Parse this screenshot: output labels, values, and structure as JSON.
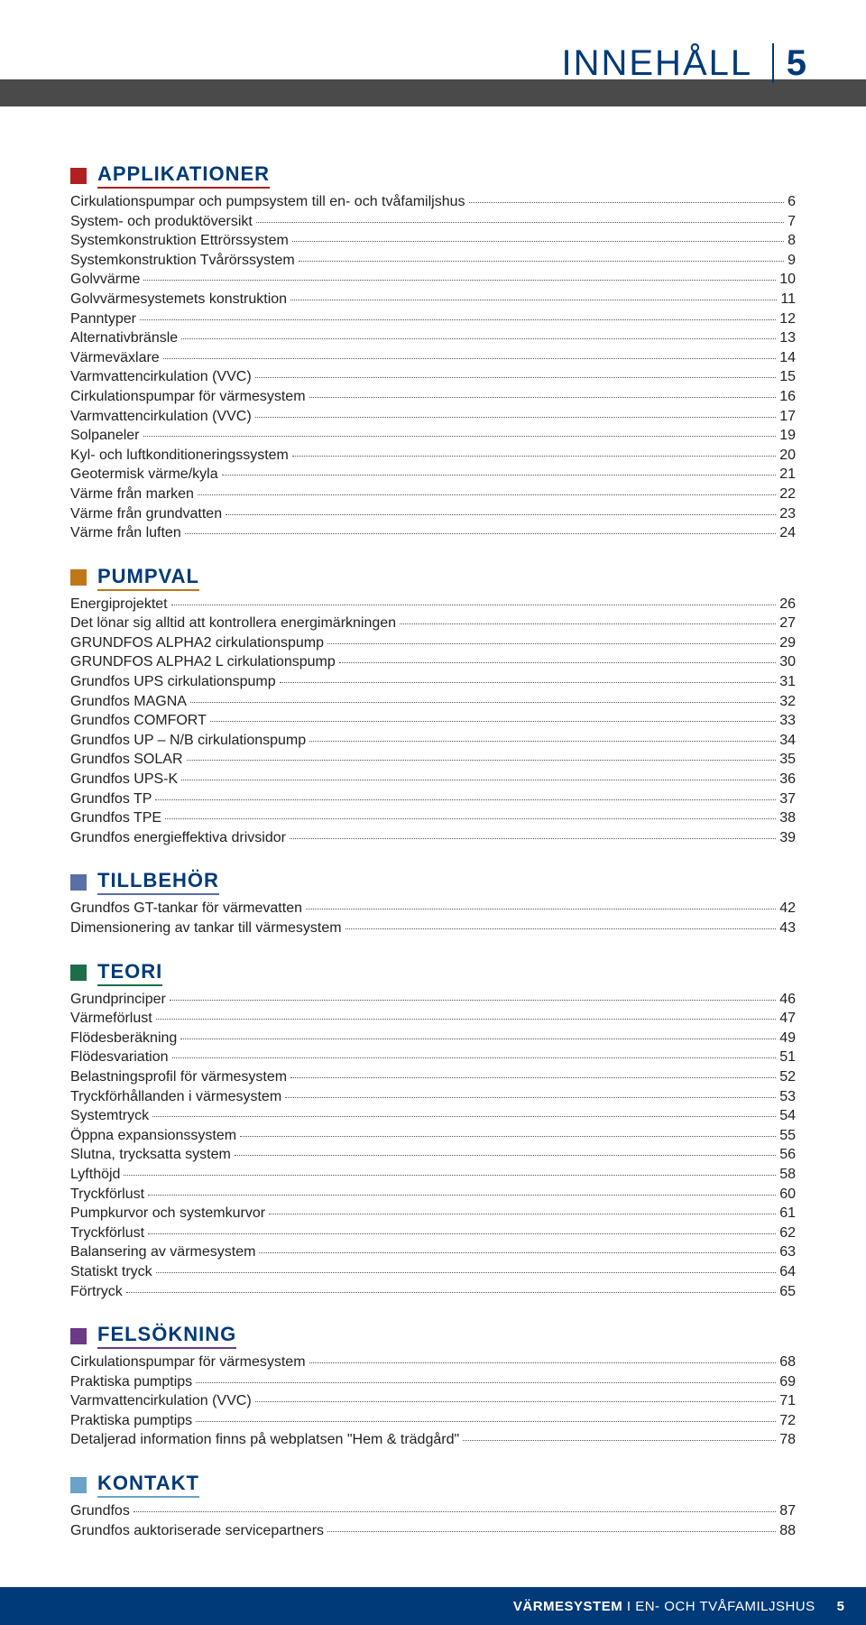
{
  "header": {
    "title": "INNEHÅLL",
    "page_number": "5",
    "title_color": "#003a78",
    "band_color": "#4a4a4a"
  },
  "typography": {
    "body_font": "Arial, Helvetica, sans-serif",
    "section_title_size_pt": 16,
    "entry_size_pt": 12
  },
  "colors": {
    "text": "#222222",
    "dots": "#555555",
    "footer_bg": "#003a78",
    "footer_text": "#ffffff"
  },
  "sections": [
    {
      "title": "APPLIKATIONER",
      "box_color": "#b02020",
      "underline_color": "#b02020",
      "entries": [
        {
          "label": "Cirkulationspumpar och pumpsystem till en- och tvåfamiljshus",
          "page": "6"
        },
        {
          "label": "System- och produktöversikt",
          "page": "7"
        },
        {
          "label": "Systemkonstruktion Ettrörssystem",
          "page": "8"
        },
        {
          "label": "Systemkonstruktion Tvårörssystem",
          "page": "9"
        },
        {
          "label": "Golvvärme",
          "page": "10"
        },
        {
          "label": "Golvvärmesystemets konstruktion",
          "page": "11"
        },
        {
          "label": "Panntyper",
          "page": "12"
        },
        {
          "label": "Alternativbränsle",
          "page": "13"
        },
        {
          "label": "Värmeväxlare",
          "page": "14"
        },
        {
          "label": "Varmvattencirkulation (VVC)",
          "page": "15"
        },
        {
          "label": "Cirkulationspumpar för värmesystem",
          "page": "16"
        },
        {
          "label": "Varmvattencirkulation (VVC)",
          "page": "17"
        },
        {
          "label": "Solpaneler",
          "page": "19"
        },
        {
          "label": "Kyl- och luftkonditioneringssystem",
          "page": "20"
        },
        {
          "label": "Geotermisk värme/kyla",
          "page": "21"
        },
        {
          "label": "Värme från marken",
          "page": "22"
        },
        {
          "label": "Värme från grundvatten",
          "page": "23"
        },
        {
          "label": "Värme från luften",
          "page": "24"
        }
      ]
    },
    {
      "title": "PUMPVAL",
      "box_color": "#c07718",
      "underline_color": "#c07718",
      "entries": [
        {
          "label": "Energiprojektet",
          "page": "26"
        },
        {
          "label": "Det lönar sig alltid att kontrollera energimärkningen",
          "page": "27"
        },
        {
          "label": "GRUNDFOS ALPHA2 cirkulationspump",
          "page": "29"
        },
        {
          "label": "GRUNDFOS ALPHA2 L cirkulationspump",
          "page": "30"
        },
        {
          "label": "Grundfos UPS cirkulationspump",
          "page": "31"
        },
        {
          "label": "Grundfos MAGNA",
          "page": "32"
        },
        {
          "label": "Grundfos COMFORT",
          "page": "33"
        },
        {
          "label": "Grundfos UP – N/B cirkulationspump",
          "page": "34"
        },
        {
          "label": "Grundfos SOLAR",
          "page": "35"
        },
        {
          "label": "Grundfos UPS-K",
          "page": "36"
        },
        {
          "label": "Grundfos TP",
          "page": "37"
        },
        {
          "label": "Grundfos TPE",
          "page": "38"
        },
        {
          "label": "Grundfos energieffektiva drivsidor",
          "page": "39"
        }
      ]
    },
    {
      "title": "TILLBEHÖR",
      "box_color": "#5a6ea8",
      "underline_color": "#5a6ea8",
      "entries": [
        {
          "label": "Grundfos GT-tankar för värmevatten",
          "page": "42"
        },
        {
          "label": "Dimensionering av tankar till värmesystem",
          "page": "43"
        }
      ]
    },
    {
      "title": "TEORI",
      "box_color": "#1a6e4a",
      "underline_color": "#1a6e4a",
      "entries": [
        {
          "label": "Grundprinciper",
          "page": "46"
        },
        {
          "label": "Värmeförlust",
          "page": "47"
        },
        {
          "label": "Flödesberäkning",
          "page": "49"
        },
        {
          "label": "Flödesvariation",
          "page": "51"
        },
        {
          "label": "Belastningsprofil för värmesystem",
          "page": "52"
        },
        {
          "label": "Tryckförhållanden i värmesystem",
          "page": "53"
        },
        {
          "label": "Systemtryck",
          "page": "54"
        },
        {
          "label": "Öppna expansionssystem",
          "page": "55"
        },
        {
          "label": "Slutna, trycksatta system",
          "page": "56"
        },
        {
          "label": "Lyfthöjd",
          "page": "58"
        },
        {
          "label": "Tryckförlust",
          "page": "60"
        },
        {
          "label": "Pumpkurvor och systemkurvor",
          "page": "61"
        },
        {
          "label": "Tryckförlust",
          "page": "62"
        },
        {
          "label": "Balansering av värmesystem",
          "page": "63"
        },
        {
          "label": "Statiskt tryck",
          "page": "64"
        },
        {
          "label": "Förtryck",
          "page": "65"
        }
      ]
    },
    {
      "title": "FELSÖKNING",
      "box_color": "#6a3a86",
      "underline_color": "#6a3a86",
      "entries": [
        {
          "label": "Cirkulationspumpar för värmesystem",
          "page": "68"
        },
        {
          "label": "Praktiska pumptips",
          "page": "69"
        },
        {
          "label": "Varmvattencirkulation (VVC)",
          "page": "71"
        },
        {
          "label": "Praktiska pumptips",
          "page": "72"
        },
        {
          "label": "Detaljerad information finns på webplatsen \"Hem & trädgård\"",
          "page": "78"
        }
      ]
    },
    {
      "title": "KONTAKT",
      "box_color": "#6aa2c8",
      "underline_color": "#6aa2c8",
      "entries": [
        {
          "label": "Grundfos",
          "page": "87"
        },
        {
          "label": "Grundfos auktoriserade servicepartners",
          "page": "88"
        }
      ]
    }
  ],
  "footer": {
    "text_bold": "VÄRMESYSTEM",
    "text_rest": " I EN- OCH TVÅFAMILJSHUS",
    "page_number": "5"
  }
}
